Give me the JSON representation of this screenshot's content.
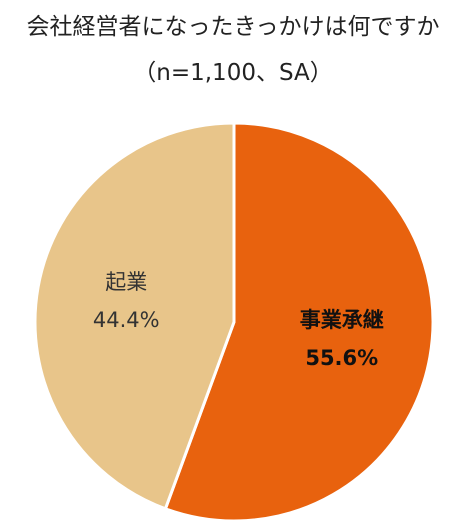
{
  "chart_data": {
    "type": "pie",
    "title": "会社経営者になったきっかけは何ですか",
    "subtitle": "（n=1,100、SA）",
    "slices": [
      {
        "name": "事業承継",
        "value": 55.6,
        "label": "55.6%",
        "color": "#e8620e",
        "label_color": "#111111",
        "bold": true
      },
      {
        "name": "起業",
        "value": 44.4,
        "label": "44.4%",
        "color": "#e8c58a",
        "label_color": "#333333",
        "bold": false
      }
    ],
    "start": "12 o'clock",
    "direction": "clockwise",
    "slice_border_color": "#ffffff"
  }
}
